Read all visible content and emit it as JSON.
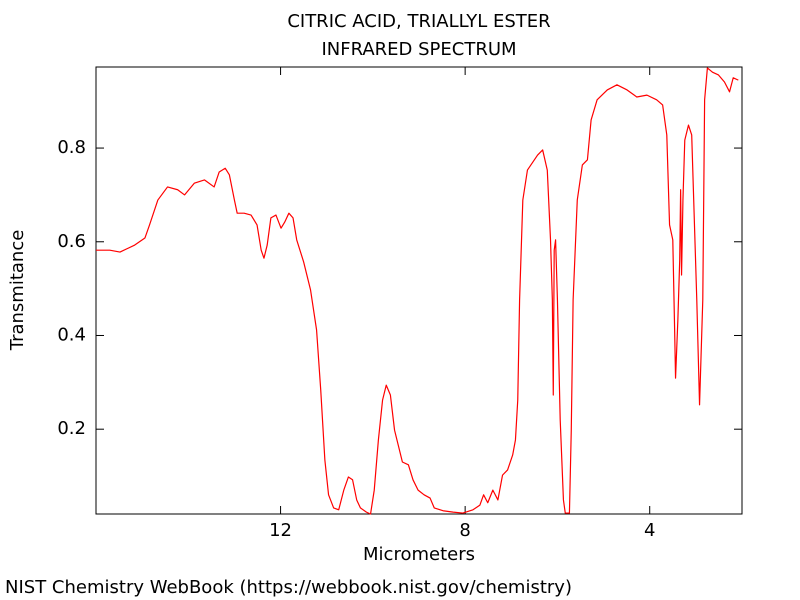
{
  "chart_data": {
    "type": "line",
    "title": "CITRIC ACID, TRIALLYL ESTER",
    "subtitle": "INFRARED SPECTRUM",
    "x_label": "Micrometers",
    "y_label": "Transmitance",
    "source": "NIST Chemistry WebBook (https://webbook.nist.gov/chemistry)",
    "color": "#ff0000",
    "xlim": [
      16,
      2
    ],
    "ylim": [
      0.019,
      0.973
    ],
    "xticks": [
      12,
      8,
      4
    ],
    "yticks": [
      0.2,
      0.4,
      0.6,
      0.8
    ],
    "x": [
      16.0,
      15.7,
      15.48,
      15.16,
      14.94,
      14.84,
      14.66,
      14.45,
      14.23,
      14.08,
      13.87,
      13.65,
      13.44,
      13.33,
      13.2,
      13.11,
      13.0,
      12.94,
      12.79,
      12.64,
      12.51,
      12.42,
      12.36,
      12.29,
      12.21,
      12.1,
      11.99,
      11.91,
      11.82,
      11.73,
      11.65,
      11.5,
      11.35,
      11.22,
      11.13,
      11.04,
      10.96,
      10.85,
      10.74,
      10.63,
      10.53,
      10.44,
      10.35,
      10.27,
      10.14,
      10.05,
      9.97,
      9.88,
      9.79,
      9.71,
      9.62,
      9.53,
      9.45,
      9.36,
      9.23,
      9.13,
      9.02,
      8.89,
      8.76,
      8.67,
      8.48,
      8.26,
      8.05,
      7.83,
      7.68,
      7.6,
      7.51,
      7.4,
      7.29,
      7.19,
      7.08,
      6.97,
      6.91,
      6.86,
      6.82,
      6.75,
      6.65,
      6.43,
      6.32,
      6.22,
      6.15,
      6.11,
      6.09,
      6.07,
      6.04,
      6.0,
      5.94,
      5.87,
      5.83,
      5.74,
      5.7,
      5.66,
      5.57,
      5.46,
      5.35,
      5.27,
      5.14,
      4.92,
      4.71,
      4.49,
      4.28,
      4.06,
      3.85,
      3.72,
      3.63,
      3.57,
      3.5,
      3.46,
      3.44,
      3.39,
      3.35,
      3.33,
      3.31,
      3.28,
      3.24,
      3.16,
      3.09,
      2.98,
      2.92,
      2.85,
      2.81,
      2.75,
      2.64,
      2.51,
      2.38,
      2.27,
      2.19,
      2.08
    ],
    "values": [
      0.582,
      0.582,
      0.578,
      0.593,
      0.608,
      0.636,
      0.689,
      0.717,
      0.711,
      0.7,
      0.725,
      0.732,
      0.717,
      0.749,
      0.757,
      0.743,
      0.689,
      0.661,
      0.661,
      0.657,
      0.636,
      0.582,
      0.565,
      0.593,
      0.651,
      0.657,
      0.629,
      0.642,
      0.661,
      0.651,
      0.604,
      0.557,
      0.497,
      0.412,
      0.284,
      0.134,
      0.06,
      0.032,
      0.028,
      0.07,
      0.098,
      0.092,
      0.049,
      0.032,
      0.023,
      0.019,
      0.07,
      0.177,
      0.262,
      0.294,
      0.273,
      0.198,
      0.166,
      0.13,
      0.124,
      0.092,
      0.07,
      0.06,
      0.053,
      0.032,
      0.026,
      0.023,
      0.021,
      0.028,
      0.038,
      0.06,
      0.043,
      0.07,
      0.049,
      0.102,
      0.113,
      0.145,
      0.177,
      0.262,
      0.476,
      0.689,
      0.753,
      0.785,
      0.796,
      0.753,
      0.604,
      0.476,
      0.273,
      0.582,
      0.604,
      0.476,
      0.22,
      0.049,
      0.021,
      0.021,
      0.198,
      0.476,
      0.689,
      0.764,
      0.775,
      0.86,
      0.903,
      0.924,
      0.935,
      0.924,
      0.909,
      0.913,
      0.903,
      0.892,
      0.828,
      0.636,
      0.604,
      0.412,
      0.309,
      0.433,
      0.561,
      0.711,
      0.529,
      0.689,
      0.817,
      0.849,
      0.828,
      0.476,
      0.252,
      0.476,
      0.903,
      0.971,
      0.962,
      0.956,
      0.941,
      0.92,
      0.95,
      0.945
    ]
  }
}
